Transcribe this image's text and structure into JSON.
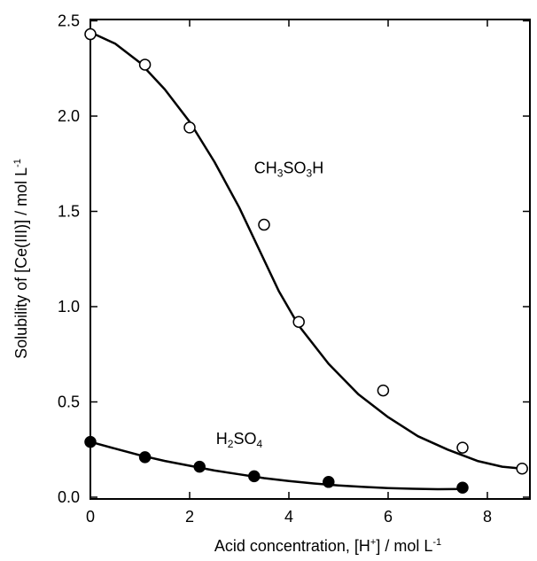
{
  "chart_data": {
    "type": "scatter",
    "xlabel": "Acid concentration, [H⁺] / mol L⁻¹",
    "ylabel": "Solubility of [Ce(III)] / mol L⁻¹",
    "xlim": [
      0,
      9
    ],
    "ylim": [
      0,
      2.5
    ],
    "x_ticks": [
      0,
      2,
      4,
      6,
      8
    ],
    "x_tick_labels": [
      "0",
      "2",
      "4",
      "6",
      "8"
    ],
    "y_ticks": [
      0.0,
      0.5,
      1.0,
      1.5,
      2.0,
      2.5
    ],
    "y_tick_labels": [
      "0.0",
      "0.5",
      "1.0",
      "1.5",
      "2.0",
      "2.5"
    ],
    "grid": false,
    "series": [
      {
        "name": "CH3SO3H",
        "marker": "open-circle",
        "color": "#000000",
        "points": [
          {
            "x": 0.0,
            "y": 2.43
          },
          {
            "x": 1.1,
            "y": 2.27
          },
          {
            "x": 2.0,
            "y": 1.94
          },
          {
            "x": 3.5,
            "y": 1.43
          },
          {
            "x": 4.2,
            "y": 0.92
          },
          {
            "x": 5.9,
            "y": 0.56
          },
          {
            "x": 7.5,
            "y": 0.26
          },
          {
            "x": 8.7,
            "y": 0.15
          }
        ],
        "fit_curve": [
          {
            "x": 0.0,
            "y": 2.44
          },
          {
            "x": 0.5,
            "y": 2.38
          },
          {
            "x": 1.0,
            "y": 2.28
          },
          {
            "x": 1.5,
            "y": 2.14
          },
          {
            "x": 2.0,
            "y": 1.97
          },
          {
            "x": 2.5,
            "y": 1.76
          },
          {
            "x": 3.0,
            "y": 1.52
          },
          {
            "x": 3.4,
            "y": 1.3
          },
          {
            "x": 3.8,
            "y": 1.08
          },
          {
            "x": 4.2,
            "y": 0.9
          },
          {
            "x": 4.8,
            "y": 0.7
          },
          {
            "x": 5.4,
            "y": 0.54
          },
          {
            "x": 6.0,
            "y": 0.42
          },
          {
            "x": 6.6,
            "y": 0.32
          },
          {
            "x": 7.2,
            "y": 0.25
          },
          {
            "x": 7.8,
            "y": 0.19
          },
          {
            "x": 8.3,
            "y": 0.16
          },
          {
            "x": 8.7,
            "y": 0.15
          }
        ]
      },
      {
        "name": "H2SO4",
        "marker": "filled-circle",
        "color": "#000000",
        "points": [
          {
            "x": 0.0,
            "y": 0.29
          },
          {
            "x": 1.1,
            "y": 0.21
          },
          {
            "x": 2.2,
            "y": 0.16
          },
          {
            "x": 3.3,
            "y": 0.11
          },
          {
            "x": 4.8,
            "y": 0.08
          },
          {
            "x": 7.5,
            "y": 0.05
          }
        ],
        "fit_curve": [
          {
            "x": 0.0,
            "y": 0.29
          },
          {
            "x": 0.5,
            "y": 0.255
          },
          {
            "x": 1.0,
            "y": 0.22
          },
          {
            "x": 1.5,
            "y": 0.19
          },
          {
            "x": 2.0,
            "y": 0.165
          },
          {
            "x": 2.5,
            "y": 0.14
          },
          {
            "x": 3.0,
            "y": 0.12
          },
          {
            "x": 3.5,
            "y": 0.1
          },
          {
            "x": 4.0,
            "y": 0.085
          },
          {
            "x": 4.5,
            "y": 0.072
          },
          {
            "x": 5.0,
            "y": 0.062
          },
          {
            "x": 5.5,
            "y": 0.054
          },
          {
            "x": 6.0,
            "y": 0.048
          },
          {
            "x": 6.5,
            "y": 0.044
          },
          {
            "x": 7.0,
            "y": 0.042
          },
          {
            "x": 7.5,
            "y": 0.043
          }
        ]
      }
    ],
    "annotations": [
      {
        "series": "CH3SO3H",
        "text_main_1": "CH",
        "text_sub_1": "3",
        "text_main_2": "SO",
        "text_sub_2": "3",
        "text_main_3": "H",
        "at": {
          "x": 4.0,
          "y": 1.7
        }
      },
      {
        "series": "H2SO4",
        "text_main_1": "H",
        "text_sub_1": "2",
        "text_main_2": "SO",
        "text_sub_2": "4",
        "at": {
          "x": 3.0,
          "y": 0.28
        }
      }
    ],
    "xlabel_parts": {
      "main": "Acid concentration, [H",
      "sup1": "+",
      "mid": "] / mol L",
      "sup2": "-1"
    },
    "ylabel_parts": {
      "main": "Solubility of [Ce(III)] / mol L",
      "sup": "-1"
    }
  }
}
